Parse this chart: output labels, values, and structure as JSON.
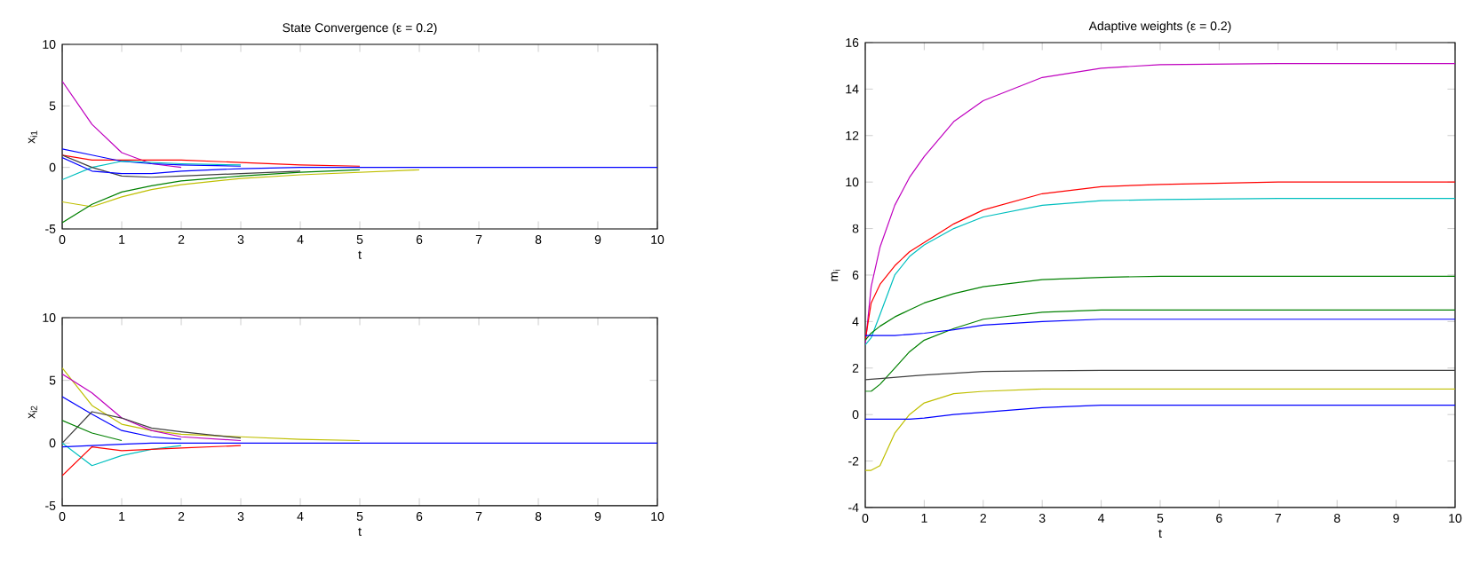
{
  "chart_data": [
    {
      "type": "line",
      "title": "State Convergence (ε = 0.2)",
      "xlabel": "t",
      "ylabel": "x$_{i1}$",
      "marker": "none",
      "xlim": [
        0,
        10
      ],
      "ylim": [
        -5,
        10
      ],
      "xticks": [
        0,
        1,
        2,
        3,
        4,
        5,
        6,
        7,
        8,
        9,
        10
      ],
      "yticks": [
        -5,
        0,
        5,
        10
      ],
      "x": [
        0,
        0.5,
        1,
        1.5,
        2,
        3,
        4,
        5,
        6,
        8,
        10
      ],
      "series": [
        {
          "color": "#bf00bf",
          "values": [
            7,
            3.5,
            1.2,
            0.3,
            0,
            null,
            null,
            null,
            null,
            null,
            null
          ]
        },
        {
          "color": "#ff0000",
          "values": [
            1,
            0.6,
            0.6,
            0.6,
            0.6,
            0.4,
            0.2,
            0.1,
            null,
            null,
            null
          ]
        },
        {
          "color": "#0000ff",
          "values": [
            1.5,
            1.0,
            0.5,
            0.3,
            0.2,
            0.1,
            null,
            null,
            null,
            null,
            null
          ]
        },
        {
          "color": "#00bfbf",
          "values": [
            -1,
            0,
            0.5,
            0.4,
            0.3,
            0.2,
            null,
            null,
            null,
            null,
            null
          ]
        },
        {
          "color": "#bfbf00",
          "values": [
            -2.8,
            -3.2,
            -2.4,
            -1.8,
            -1.4,
            -0.9,
            -0.6,
            -0.4,
            -0.2,
            null,
            null
          ]
        },
        {
          "color": "#008000",
          "values": [
            -4.5,
            -3,
            -2,
            -1.5,
            -1.1,
            -0.7,
            -0.4,
            -0.2,
            null,
            null,
            null
          ]
        },
        {
          "color": "#404040",
          "values": [
            1,
            0,
            -0.7,
            -0.8,
            -0.7,
            -0.5,
            -0.3,
            null,
            null,
            null,
            null
          ]
        },
        {
          "color": "#0000ff",
          "values": [
            0.8,
            -0.3,
            -0.5,
            -0.5,
            -0.3,
            -0.1,
            0,
            0,
            0,
            0,
            0
          ]
        }
      ]
    },
    {
      "type": "line",
      "xlabel": "t",
      "ylabel": "x$_{i2}$",
      "marker": "none",
      "xlim": [
        0,
        10
      ],
      "ylim": [
        -5,
        10
      ],
      "xticks": [
        0,
        1,
        2,
        3,
        4,
        5,
        6,
        7,
        8,
        9,
        10
      ],
      "yticks": [
        -5,
        0,
        5,
        10
      ],
      "x": [
        0,
        0.5,
        1,
        1.5,
        2,
        3,
        4,
        5,
        6,
        8,
        10
      ],
      "series": [
        {
          "color": "#bfbf00",
          "values": [
            6,
            3,
            1.5,
            1,
            0.7,
            0.5,
            0.3,
            0.2,
            null,
            null,
            null
          ]
        },
        {
          "color": "#bf00bf",
          "values": [
            5.5,
            4,
            2,
            1,
            0.5,
            0.2,
            null,
            null,
            null,
            null,
            null
          ]
        },
        {
          "color": "#0000ff",
          "values": [
            3.7,
            2.3,
            1,
            0.5,
            0.3,
            null,
            null,
            null,
            null,
            null,
            null
          ]
        },
        {
          "color": "#404040",
          "values": [
            0,
            2.5,
            2,
            1.2,
            0.9,
            0.4,
            null,
            null,
            null,
            null,
            null
          ]
        },
        {
          "color": "#008000",
          "values": [
            1.8,
            0.8,
            0.2,
            null,
            null,
            null,
            null,
            null,
            null,
            null,
            null
          ]
        },
        {
          "color": "#00bfbf",
          "values": [
            0,
            -1.8,
            -1,
            -0.5,
            -0.2,
            null,
            null,
            null,
            null,
            null,
            null
          ]
        },
        {
          "color": "#ff0000",
          "values": [
            -2.6,
            -0.3,
            -0.6,
            -0.5,
            -0.4,
            -0.2,
            null,
            null,
            null,
            null,
            null
          ]
        },
        {
          "color": "#0000ff",
          "values": [
            -0.3,
            -0.2,
            -0.1,
            0,
            0,
            0,
            0,
            0,
            0,
            0,
            0
          ]
        }
      ]
    },
    {
      "type": "line",
      "title": "Adaptive weights (ε = 0.2)",
      "xlabel": "t",
      "ylabel": "m$_{i}$",
      "marker": "none",
      "xlim": [
        0,
        10
      ],
      "ylim": [
        -4,
        16
      ],
      "xticks": [
        0,
        1,
        2,
        3,
        4,
        5,
        6,
        7,
        8,
        9,
        10
      ],
      "yticks": [
        -4,
        -2,
        0,
        2,
        4,
        6,
        8,
        10,
        12,
        14,
        16
      ],
      "x": [
        0,
        0.1,
        0.25,
        0.5,
        0.75,
        1,
        1.5,
        2,
        3,
        4,
        5,
        7,
        10
      ],
      "series": [
        {
          "color": "#bf00bf",
          "values": [
            3,
            5.5,
            7.2,
            9,
            10.2,
            11.1,
            12.6,
            13.5,
            14.5,
            14.9,
            15.05,
            15.1,
            15.1
          ]
        },
        {
          "color": "#ff0000",
          "values": [
            3.2,
            4.8,
            5.6,
            6.4,
            7,
            7.4,
            8.2,
            8.8,
            9.5,
            9.8,
            9.9,
            10,
            10
          ]
        },
        {
          "color": "#00bfbf",
          "values": [
            3,
            3.3,
            4.3,
            6,
            6.8,
            7.3,
            8,
            8.5,
            9,
            9.2,
            9.25,
            9.3,
            9.3
          ]
        },
        {
          "color": "#008000",
          "values": [
            3.2,
            3.5,
            3.8,
            4.2,
            4.5,
            4.8,
            5.2,
            5.5,
            5.8,
            5.9,
            5.95,
            5.95,
            5.95
          ]
        },
        {
          "color": "#008000",
          "values": [
            1,
            1,
            1.3,
            2,
            2.7,
            3.2,
            3.7,
            4.1,
            4.4,
            4.5,
            4.5,
            4.5,
            4.5
          ]
        },
        {
          "color": "#0000ff",
          "values": [
            3.4,
            3.4,
            3.4,
            3.4,
            3.45,
            3.5,
            3.65,
            3.85,
            4,
            4.1,
            4.1,
            4.1,
            4.1
          ]
        },
        {
          "color": "#404040",
          "values": [
            1.5,
            1.52,
            1.55,
            1.6,
            1.65,
            1.7,
            1.78,
            1.85,
            1.88,
            1.9,
            1.9,
            1.9,
            1.9
          ]
        },
        {
          "color": "#bfbf00",
          "values": [
            -2.4,
            -2.4,
            -2.2,
            -0.8,
            0,
            0.5,
            0.9,
            1,
            1.1,
            1.1,
            1.1,
            1.1,
            1.1
          ]
        },
        {
          "color": "#0000ff",
          "values": [
            -0.2,
            -0.2,
            -0.2,
            -0.2,
            -0.2,
            -0.15,
            0,
            0.1,
            0.3,
            0.4,
            0.4,
            0.4,
            0.4
          ]
        }
      ]
    }
  ]
}
